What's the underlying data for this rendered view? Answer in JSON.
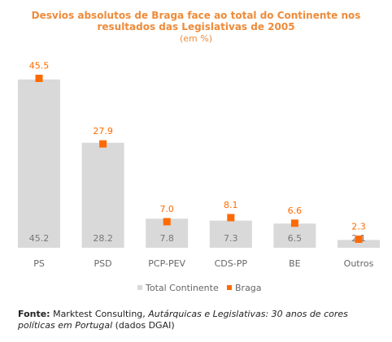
{
  "chart_data": {
    "type": "bar",
    "title_lines": [
      "Desvios absolutos de Braga face ao total do Continente nos",
      "resultados das Legislativas de 2005"
    ],
    "subtitle": "(em %)",
    "categories": [
      "PS",
      "PSD",
      "PCP-PEV",
      "CDS-PP",
      "BE",
      "Outros"
    ],
    "series": [
      {
        "name": "Total Continente",
        "kind": "bar",
        "color": "#d9d9d9",
        "values": [
          45.2,
          28.2,
          7.8,
          7.3,
          6.5,
          2.1
        ],
        "labels": [
          "45.2",
          "28.2",
          "7.8",
          "7.3",
          "6.5",
          "2.1"
        ]
      },
      {
        "name": "Braga",
        "kind": "marker",
        "color": "#ff6a00",
        "values": [
          45.5,
          27.9,
          7.0,
          8.1,
          6.6,
          2.3
        ],
        "labels": [
          "45.5",
          "27.9",
          "7.0",
          "8.1",
          "6.6",
          "2.3"
        ]
      }
    ],
    "ylim": [
      0,
      48
    ],
    "grid": false,
    "legend_position": "bottom"
  },
  "colors": {
    "title": "#ee8b3a",
    "axis_text": "#666666",
    "bar_label": "#777777",
    "marker_label": "#ff6a00"
  },
  "source": {
    "label": "Fonte:",
    "text_before": " Marktest Consulting, ",
    "italic": "Autárquicas e Legislativas: 30 anos de cores políticas em Portugal",
    "text_after": " (dados DGAI)"
  }
}
